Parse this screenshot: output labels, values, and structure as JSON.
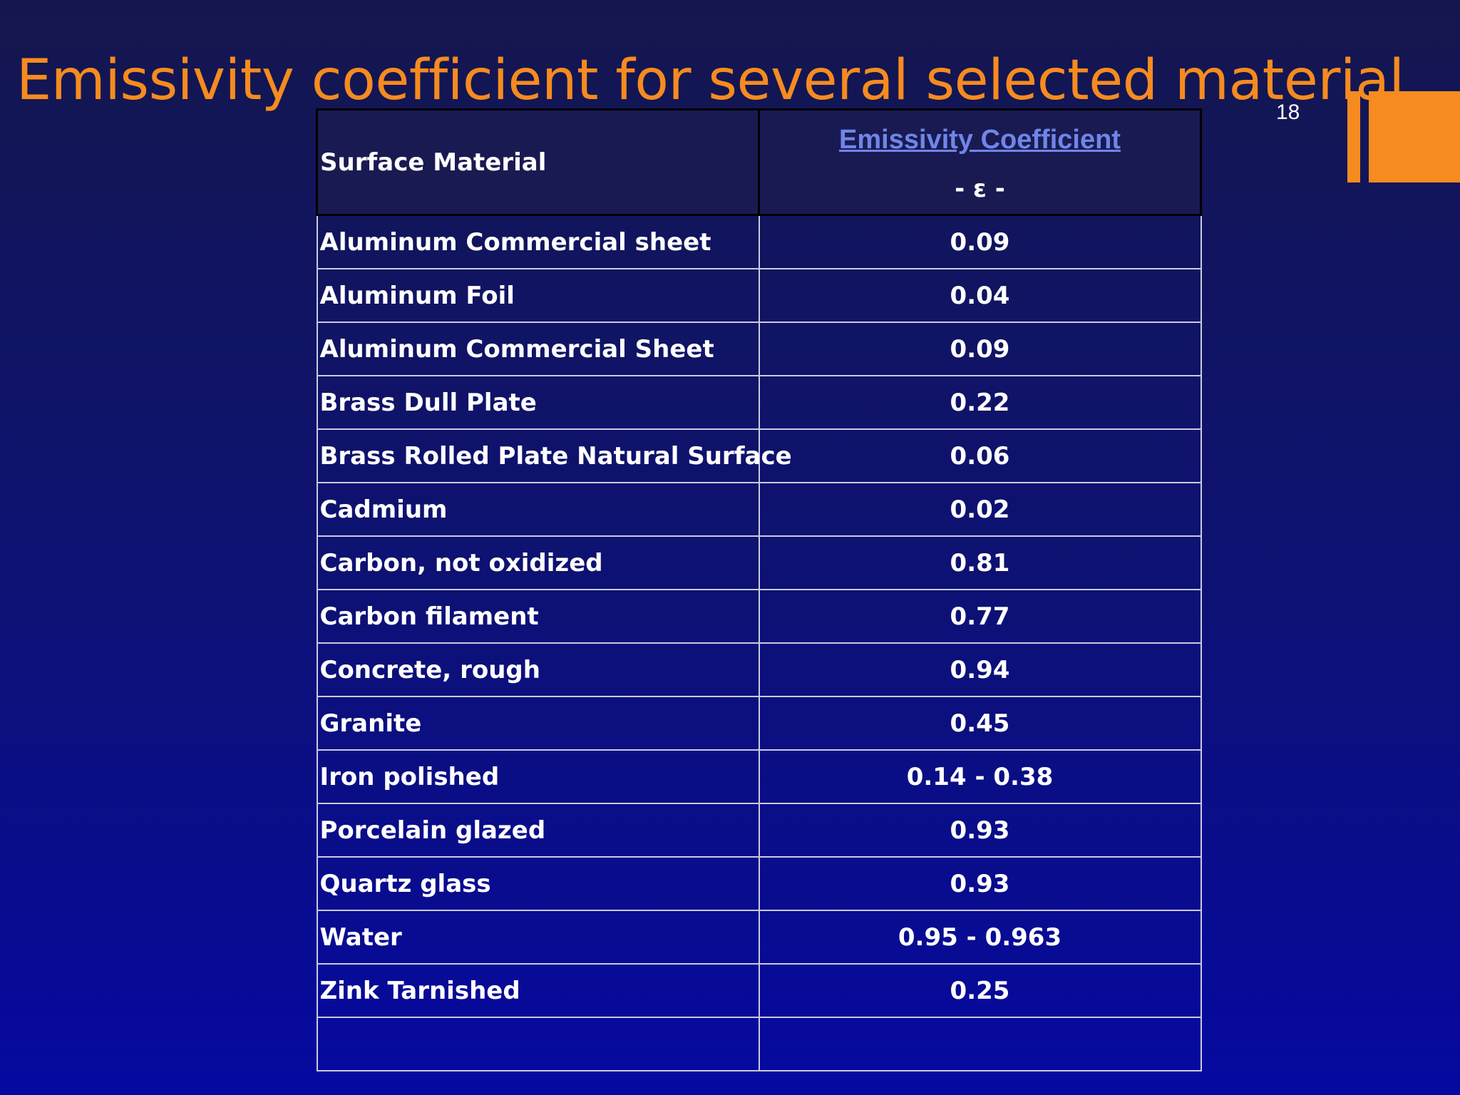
{
  "title": "Emissivity coefficient for several selected material",
  "slide_number": "18",
  "colors": {
    "accent": "#f68b1f",
    "link_blue": "#6f86e8",
    "text": "#ffffff"
  },
  "table": {
    "header": {
      "material": "Surface Material",
      "coefficient_title": "Emissivity Coefficient",
      "coefficient_symbol": "- ε -"
    },
    "rows": [
      {
        "material": "Aluminum Commercial sheet",
        "value": "0.09"
      },
      {
        "material": "Aluminum Foil",
        "value": "0.04"
      },
      {
        "material": "Aluminum Commercial Sheet",
        "value": "0.09"
      },
      {
        "material": "Brass Dull Plate",
        "value": "0.22"
      },
      {
        "material": "Brass Rolled Plate Natural Surface",
        "value": "0.06"
      },
      {
        "material": "Cadmium",
        "value": "0.02"
      },
      {
        "material": "Carbon, not oxidized",
        "value": "0.81"
      },
      {
        "material": "Carbon filament",
        "value": "0.77"
      },
      {
        "material": "Concrete, rough",
        "value": "0.94"
      },
      {
        "material": "Granite",
        "value": "0.45"
      },
      {
        "material": "Iron polished",
        "value": "0.14 - 0.38"
      },
      {
        "material": "Porcelain glazed",
        "value": "0.93"
      },
      {
        "material": "Quartz glass",
        "value": "0.93"
      },
      {
        "material": "Water",
        "value": "0.95 - 0.963"
      },
      {
        "material": "Zink Tarnished",
        "value": "0.25"
      },
      {
        "material": "",
        "value": ""
      }
    ]
  }
}
